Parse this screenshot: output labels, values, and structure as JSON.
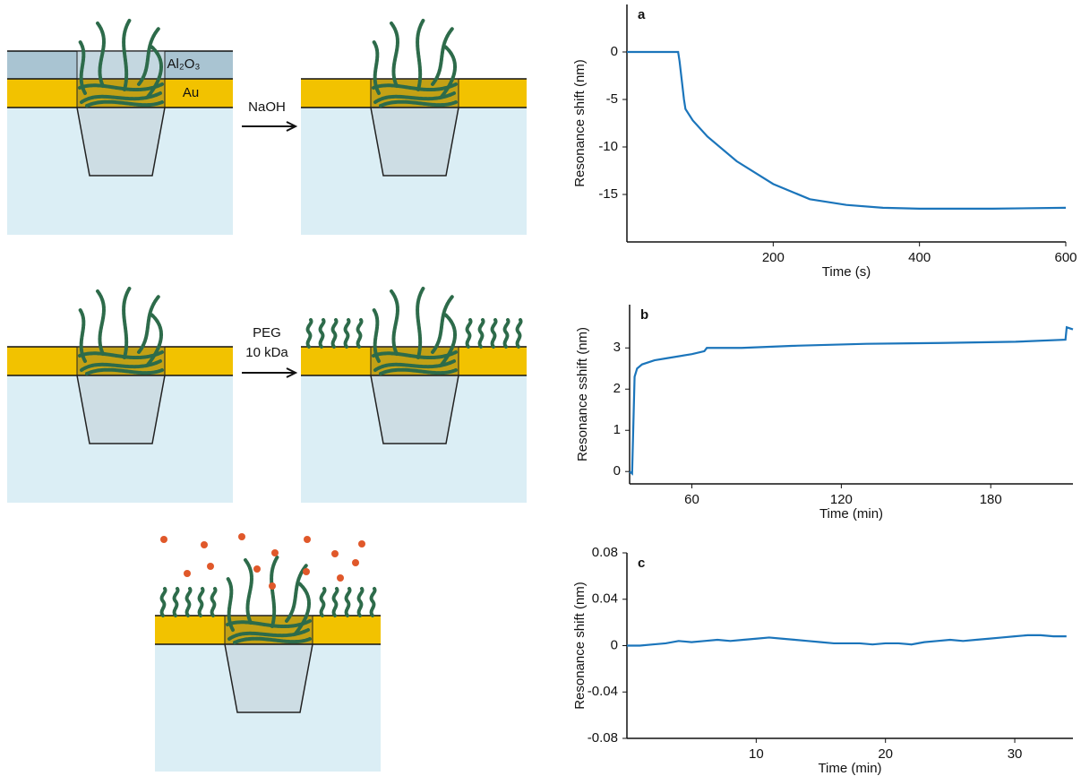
{
  "diagram": {
    "layer_top": "Al₂O₃",
    "layer_gold": "Au",
    "step1": "NaOH",
    "step2_line1": "PEG",
    "step2_line2": "10 kDa"
  },
  "chart_data": [
    {
      "type": "line",
      "title": "a",
      "x_label": "Time (s)",
      "y_label": "Resonance shift (nm)",
      "x": [
        0,
        70,
        72,
        75,
        78,
        80,
        90,
        110,
        150,
        200,
        250,
        300,
        350,
        400,
        500,
        600
      ],
      "values": [
        0,
        0,
        -1,
        -3,
        -5,
        -6,
        -7.2,
        -8.9,
        -11.5,
        -13.9,
        -15.5,
        -16.1,
        -16.4,
        -16.5,
        -16.5,
        -16.4
      ],
      "color": "#1b75bb",
      "xlim": [
        0,
        600
      ],
      "ylim": [
        -20,
        5
      ],
      "xticks": [
        200,
        400,
        600
      ],
      "yticks": [
        0,
        -5,
        -10,
        -15
      ]
    },
    {
      "type": "line",
      "title": "b",
      "x_label": "Time (min)",
      "y_label": "Resonance sshift (nm)",
      "x": [
        35,
        36,
        37,
        38,
        40,
        45,
        50,
        60,
        65,
        66,
        70,
        80,
        100,
        130,
        160,
        190,
        210,
        210.5,
        213
      ],
      "values": [
        0,
        -0.05,
        2.3,
        2.5,
        2.6,
        2.7,
        2.75,
        2.85,
        2.92,
        3.0,
        3.0,
        3.0,
        3.05,
        3.1,
        3.12,
        3.15,
        3.2,
        3.5,
        3.45
      ],
      "color": "#1b75bb",
      "xlim": [
        35,
        213
      ],
      "ylim": [
        -0.3,
        4.05
      ],
      "xticks": [
        60,
        120,
        180
      ],
      "yticks": [
        0,
        1,
        2,
        3
      ]
    },
    {
      "type": "line",
      "title": "c",
      "x_label": "Time (min)",
      "y_label": "Resonance shift (nm)",
      "x": [
        0,
        1,
        2,
        3,
        4,
        5,
        6,
        7,
        8,
        9,
        10,
        11,
        12,
        13,
        14,
        15,
        16,
        17,
        18,
        19,
        20,
        21,
        22,
        23,
        24,
        25,
        26,
        27,
        28,
        29,
        30,
        31,
        32,
        33,
        34
      ],
      "values": [
        0,
        0,
        0.001,
        0.002,
        0.004,
        0.003,
        0.004,
        0.005,
        0.004,
        0.005,
        0.006,
        0.007,
        0.006,
        0.005,
        0.004,
        0.003,
        0.002,
        0.002,
        0.002,
        0.001,
        0.002,
        0.002,
        0.001,
        0.003,
        0.004,
        0.005,
        0.004,
        0.005,
        0.006,
        0.007,
        0.008,
        0.009,
        0.009,
        0.008,
        0.008
      ],
      "color": "#1b75bb",
      "xlim": [
        0,
        34.5
      ],
      "ylim": [
        -0.08,
        0.08
      ],
      "xticks": [
        10,
        20,
        30
      ],
      "yticks": [
        0.08,
        0.04,
        0,
        -0.04,
        -0.08
      ]
    }
  ]
}
